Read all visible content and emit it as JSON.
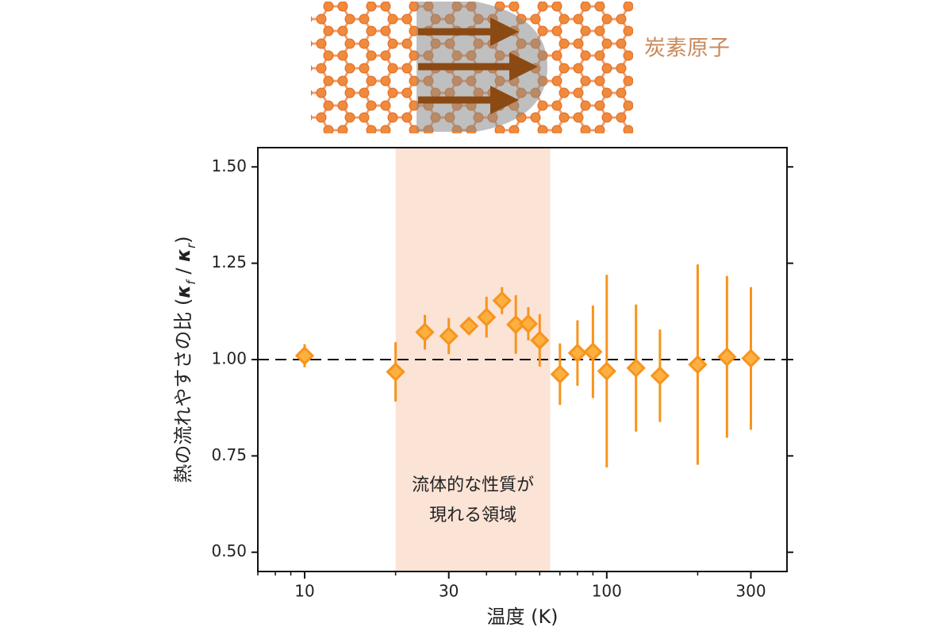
{
  "illustration_label": "炭素原子",
  "chart_data": {
    "type": "scatter",
    "xlabel": "温度 (K)",
    "ylabel": [
      "熱の流れやすさの比 (",
      "κ",
      "f",
      " / ",
      "κ",
      "r",
      ")"
    ],
    "x_scale": "log",
    "xlim": [
      7,
      395
    ],
    "xticks": [
      10,
      30,
      100,
      300
    ],
    "xminorticks": [
      7,
      8,
      9,
      20,
      40,
      50,
      60,
      70,
      80,
      90,
      200
    ],
    "ylim": [
      0.45,
      1.55
    ],
    "yticks": [
      {
        "value": 0.5,
        "label": "0.50"
      },
      {
        "value": 0.75,
        "label": "0.75"
      },
      {
        "value": 1.0,
        "label": "1.00"
      },
      {
        "value": 1.25,
        "label": "1.25"
      },
      {
        "value": 1.5,
        "label": "1.50"
      }
    ],
    "reference_line": 1.0,
    "shaded_region": {
      "x": [
        20,
        65
      ],
      "color": "#fbe3d6",
      "label": [
        "流体的な性質が",
        "現れる領域"
      ]
    },
    "series": [
      {
        "marker": "diamond",
        "color": "#f7941d",
        "face_color": "#fcb040",
        "x": [
          10,
          20,
          25,
          30,
          35,
          40,
          45,
          50,
          55,
          60,
          70,
          80,
          90,
          100,
          125,
          150,
          200,
          250,
          300
        ],
        "values": [
          1.01,
          0.968,
          1.071,
          1.061,
          1.087,
          1.11,
          1.153,
          1.091,
          1.093,
          1.05,
          0.962,
          1.017,
          1.02,
          0.97,
          0.978,
          0.958,
          0.987,
          1.007,
          1.003
        ],
        "errors": [
          0.03,
          0.077,
          0.045,
          0.047,
          0.02,
          0.053,
          0.035,
          0.076,
          0.043,
          0.068,
          0.08,
          0.085,
          0.12,
          0.25,
          0.165,
          0.12,
          0.26,
          0.21,
          0.185
        ]
      }
    ]
  }
}
